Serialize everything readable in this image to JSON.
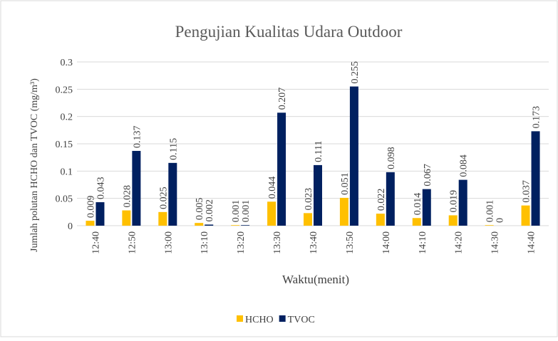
{
  "chart_data": {
    "type": "bar",
    "title": "Pengujian Kualitas Udara Outdoor",
    "x_label": "Waktu(menit)",
    "y_label": "Jumlah polutan HCHO dan TVOC (mg/m³)",
    "categories": [
      "12:40",
      "12:50",
      "13:00",
      "13:10",
      "13:20",
      "13:30",
      "13:40",
      "13:50",
      "14:00",
      "14:10",
      "14:20",
      "14:30",
      "14:40"
    ],
    "series": [
      {
        "name": "HCHO",
        "color": "#ffc000",
        "values": [
          0.009,
          0.028,
          0.025,
          0.005,
          0.001,
          0.044,
          0.023,
          0.051,
          0.022,
          0.014,
          0.019,
          0.001,
          0.037
        ]
      },
      {
        "name": "TVOC",
        "color": "#002060",
        "values": [
          0.043,
          0.137,
          0.115,
          0.002,
          0.001,
          0.207,
          0.111,
          0.255,
          0.098,
          0.067,
          0.084,
          0,
          0.173
        ]
      }
    ],
    "ylim": [
      0,
      0.3
    ],
    "yticks": [
      0,
      0.05,
      0.1,
      0.15,
      0.2,
      0.25,
      0.3
    ],
    "grid": true,
    "legend": "bottom"
  }
}
